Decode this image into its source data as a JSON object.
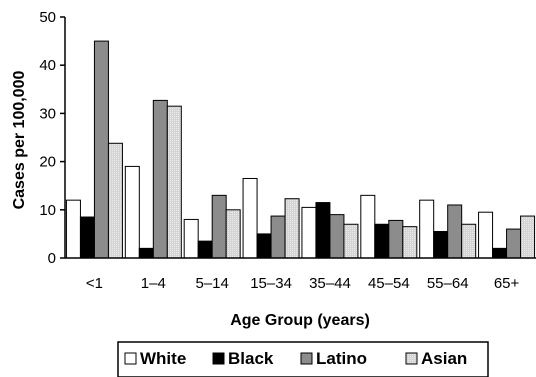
{
  "chart_data": {
    "type": "bar",
    "xlabel": "Age Group (years)",
    "ylabel": "Cases per 100,000",
    "ylim": [
      0,
      50
    ],
    "yticks": [
      "0",
      "10",
      "20",
      "30",
      "40",
      "50"
    ],
    "categories": [
      "<1",
      "1–4",
      "5–14",
      "15–34",
      "35–44",
      "45–54",
      "55–64",
      "65+"
    ],
    "series": [
      {
        "name": "White",
        "fill": "#ffffff",
        "values": [
          12,
          19,
          8,
          16.5,
          10.5,
          13,
          12,
          9.5
        ]
      },
      {
        "name": "Black",
        "fill": "#000000",
        "values": [
          8.5,
          2,
          3.5,
          5,
          11.5,
          7,
          5.5,
          2
        ]
      },
      {
        "name": "Latino",
        "fill": "#8c8c8c",
        "values": [
          45,
          32.7,
          13,
          8.7,
          9,
          7.8,
          11,
          6
        ]
      },
      {
        "name": "Asian",
        "fill": "#d9d9d9",
        "values": [
          23.8,
          31.5,
          10,
          12.3,
          7,
          6.5,
          7,
          8.7
        ]
      }
    ],
    "grid": false,
    "legend_position": "bottom"
  }
}
